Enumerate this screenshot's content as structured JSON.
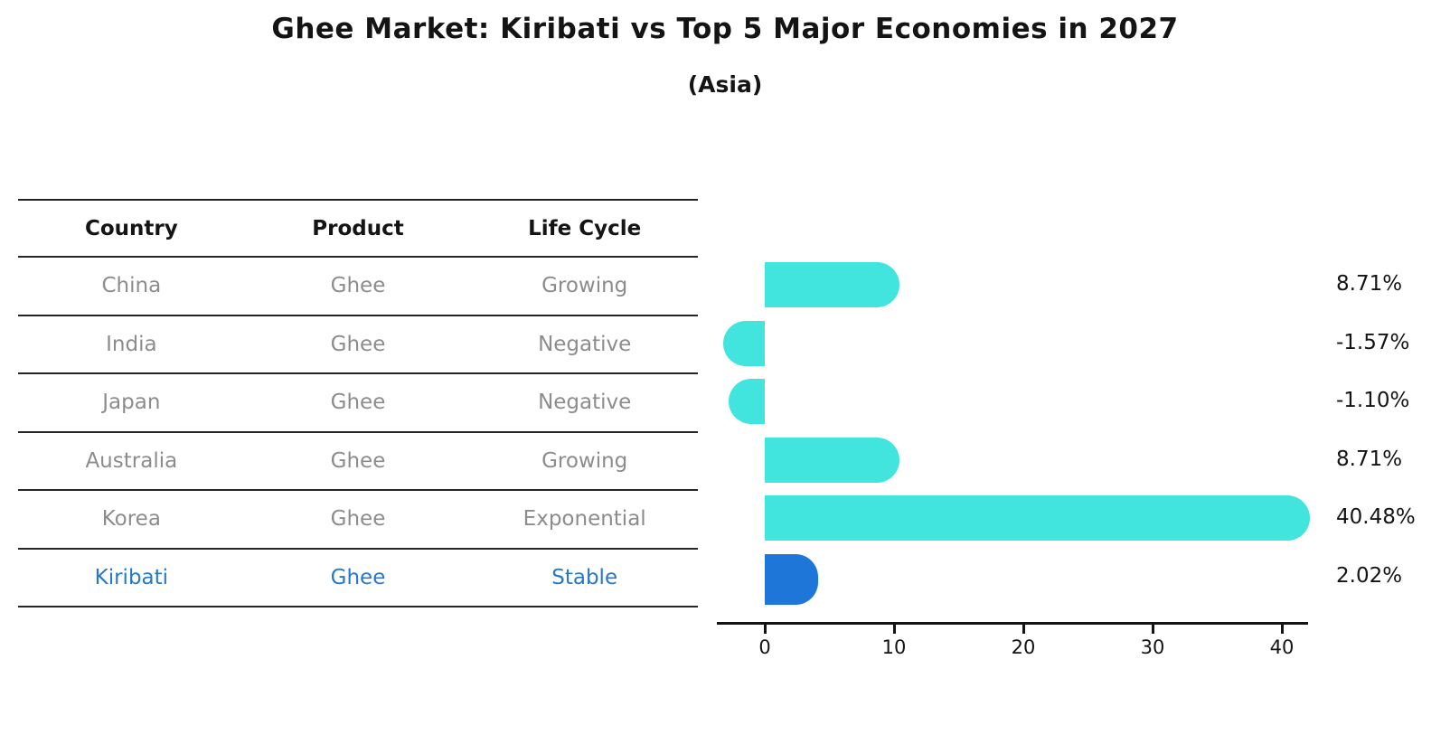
{
  "title": "Ghee Market: Kiribati vs Top 5 Major Economies in 2027",
  "subtitle": "(Asia)",
  "table": {
    "headers": [
      "Country",
      "Product",
      "Life Cycle"
    ],
    "rows": [
      {
        "country": "China",
        "product": "Ghee",
        "life_cycle": "Growing",
        "highlight": false
      },
      {
        "country": "India",
        "product": "Ghee",
        "life_cycle": "Negative",
        "highlight": false
      },
      {
        "country": "Japan",
        "product": "Ghee",
        "life_cycle": "Negative",
        "highlight": false
      },
      {
        "country": "Australia",
        "product": "Ghee",
        "life_cycle": "Growing",
        "highlight": false
      },
      {
        "country": "Korea",
        "product": "Ghee",
        "life_cycle": "Exponential",
        "highlight": false
      },
      {
        "country": "Kiribati",
        "product": "Ghee",
        "life_cycle": "Stable",
        "highlight": true
      }
    ]
  },
  "chart_data": {
    "type": "bar",
    "orientation": "horizontal",
    "title": "Ghee Market: Kiribati vs Top 5 Major Economies in 2027",
    "subtitle": "(Asia)",
    "categories": [
      "China",
      "India",
      "Japan",
      "Australia",
      "Korea",
      "Kiribati"
    ],
    "values": [
      8.71,
      -1.57,
      -1.1,
      8.71,
      40.48,
      2.02
    ],
    "value_labels": [
      "8.71%",
      "-1.57%",
      "-1.10%",
      "8.71%",
      "40.48%",
      "2.02%"
    ],
    "xtick_labels": [
      "0",
      "10",
      "20",
      "30",
      "40"
    ],
    "xtick_values": [
      0,
      10,
      20,
      30,
      40
    ],
    "xlim": [
      -3.6,
      42
    ],
    "grid": false,
    "legend_position": "none",
    "bar_color": "#42e4de",
    "highlight_bar_color": "#1e76d9",
    "highlight_index": 5
  },
  "style": {
    "row_text_color": "#8c8c8c",
    "highlight_text_color": "#2878c8",
    "header_text_color": "#141414",
    "line_color": "#262626",
    "axis_color": "#141414"
  }
}
